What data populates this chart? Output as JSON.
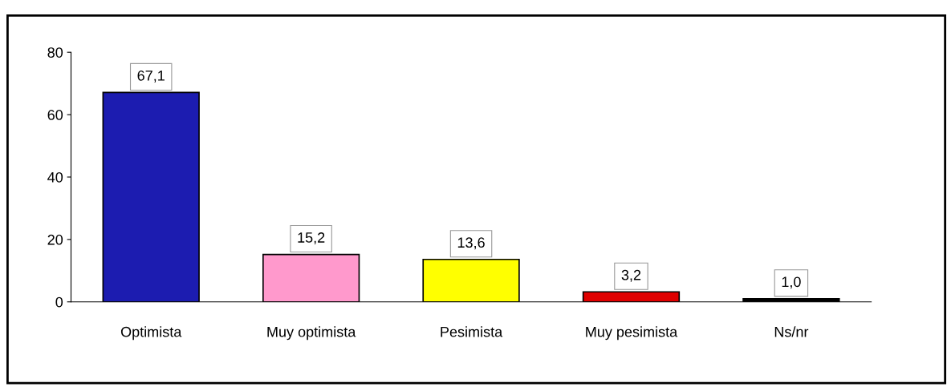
{
  "chart_data": {
    "type": "bar",
    "categories": [
      "Optimista",
      "Muy optimista",
      "Pesimista",
      "Muy pesimista",
      "Ns/nr"
    ],
    "values": [
      67.1,
      15.2,
      13.6,
      3.2,
      1.0
    ],
    "value_labels": [
      "67,1",
      "15,2",
      "13,6",
      "3,2",
      "1,0"
    ],
    "colors": [
      "#1c1cb0",
      "#ff99cc",
      "#ffff00",
      "#e00000",
      "#000000"
    ],
    "ylim": [
      0,
      80
    ],
    "yticks": [
      0,
      20,
      40,
      60,
      80
    ],
    "grid": false,
    "legend": false
  }
}
